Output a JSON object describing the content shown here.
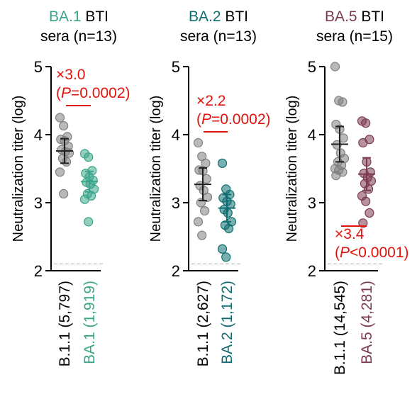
{
  "colors": {
    "b11": "#808080",
    "ba1": "#3aa58a",
    "ba2": "#0e6d70",
    "ba5": "#7b3a52",
    "annotation": "#e3120b",
    "axis": "#000000",
    "detection_limit": "#bbbbbb"
  },
  "chart_data": [
    {
      "type": "scatter",
      "title_variant": "BA.1",
      "title_rest": "BTI",
      "subtitle": "sera (n=13)",
      "ylabel": "Neutralization titer (log)",
      "ylim": [
        2,
        5
      ],
      "yticks": [
        "2",
        "3",
        "4",
        "5"
      ],
      "detection_limit": 2.1,
      "categories": [
        "B.1.1 (5,797)",
        "BA.1 (1,919)"
      ],
      "category_colors": [
        "b11",
        "ba1"
      ],
      "series": [
        {
          "color": "b11",
          "mean": 3.76,
          "sem": [
            3.58,
            3.94
          ],
          "values": [
            4.25,
            4.13,
            3.97,
            3.93,
            3.91,
            3.83,
            3.78,
            3.75,
            3.73,
            3.65,
            3.6,
            3.45,
            3.13
          ]
        },
        {
          "color": "ba1",
          "mean": 3.31,
          "sem": [
            3.16,
            3.46
          ],
          "values": [
            3.72,
            3.67,
            3.47,
            3.43,
            3.38,
            3.33,
            3.3,
            3.27,
            3.2,
            3.13,
            3.1,
            3.05,
            2.72
          ]
        }
      ],
      "annotation": {
        "fold": "×3.0",
        "p_label": "P",
        "p_value": "=0.0002"
      }
    },
    {
      "type": "scatter",
      "title_variant": "BA.2",
      "title_rest": "BTI",
      "subtitle": "sera (n=13)",
      "ylabel": "Neutralization titer (log)",
      "ylim": [
        2,
        5
      ],
      "yticks": [
        "2",
        "3",
        "4",
        "5"
      ],
      "detection_limit": 2.1,
      "categories": [
        "B.1.1 (2,627)",
        "BA.2 (1,172)"
      ],
      "category_colors": [
        "b11",
        "ba2"
      ],
      "series": [
        {
          "color": "b11",
          "mean": 3.27,
          "sem": [
            3.03,
            3.51
          ],
          "values": [
            3.88,
            3.68,
            3.58,
            3.48,
            3.47,
            3.35,
            3.25,
            3.18,
            3.08,
            3.0,
            2.88,
            2.72,
            2.52
          ]
        },
        {
          "color": "ba2",
          "mean": 2.92,
          "sem": [
            2.72,
            3.12
          ],
          "values": [
            3.58,
            3.2,
            3.12,
            3.07,
            3.02,
            2.98,
            2.9,
            2.85,
            2.72,
            2.67,
            2.62,
            2.32,
            2.2
          ]
        }
      ],
      "annotation": {
        "fold": "×2.2",
        "p_label": "P",
        "p_value": "=0.0002"
      }
    },
    {
      "type": "scatter",
      "title_variant": "BA.5",
      "title_rest": "BTI",
      "subtitle": "sera (n=15)",
      "ylabel": "Neutralization titer (log)",
      "ylim": [
        2,
        5
      ],
      "yticks": [
        "2",
        "3",
        "4",
        "5"
      ],
      "detection_limit": 2.1,
      "categories": [
        "B.1.1 (14,545)",
        "BA.5 (4,281)"
      ],
      "category_colors": [
        "b11",
        "ba5"
      ],
      "series": [
        {
          "color": "b11",
          "mean": 3.86,
          "sem": [
            3.6,
            4.12
          ],
          "values": [
            5.0,
            4.5,
            4.48,
            4.15,
            4.08,
            3.95,
            3.85,
            3.73,
            3.65,
            3.6,
            3.55,
            3.5,
            3.48,
            3.45,
            3.4
          ]
        },
        {
          "color": "ba5",
          "mean": 3.42,
          "sem": [
            3.18,
            3.66
          ],
          "values": [
            4.2,
            4.17,
            3.93,
            3.88,
            3.6,
            3.45,
            3.43,
            3.37,
            3.32,
            3.28,
            3.2,
            3.1,
            3.02,
            2.85,
            2.7
          ]
        }
      ],
      "annotation": {
        "fold": "×3.4",
        "p_label": "P",
        "p_value": "<0.0001"
      }
    }
  ]
}
